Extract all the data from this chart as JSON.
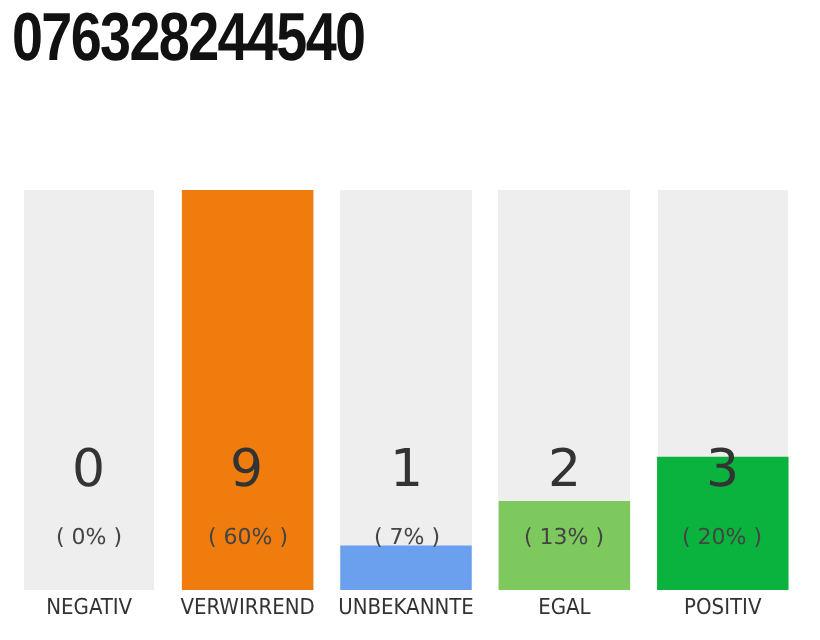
{
  "chart_data": {
    "type": "bar",
    "title": "076328244540",
    "categories": [
      "NEGATIV",
      "VERWIRREND",
      "UNBEKANNTE",
      "EGAL",
      "POSITIV"
    ],
    "values": [
      0,
      9,
      1,
      2,
      3
    ],
    "colors": [
      "#555555",
      "#f07c0e",
      "#6aa0ee",
      "#7dc95e",
      "#0ab33d"
    ],
    "ylim": [
      0,
      9
    ],
    "data_labels": true,
    "annotations": [
      "( 0% )",
      "( 60% )",
      "( 7% )",
      "( 13% )",
      "( 20% )"
    ],
    "tick_labels": "x",
    "grid": false
  }
}
